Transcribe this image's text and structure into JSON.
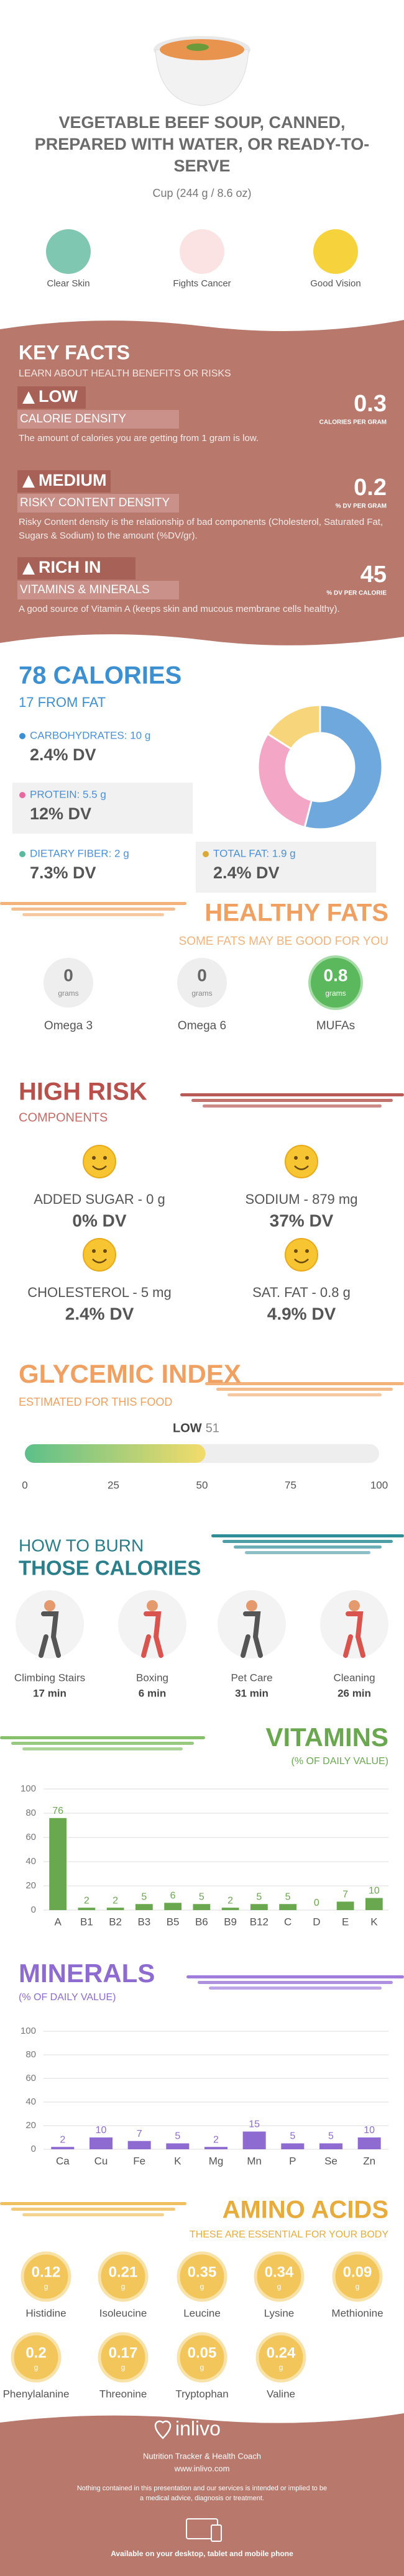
{
  "header": {
    "title": "VEGETABLE BEEF SOUP, CANNED, PREPARED WITH WATER, OR READY-TO-SERVE",
    "serving": "Cup (244 g / 8.6 oz)"
  },
  "benefits": [
    "Clear Skin",
    "Fights Cancer",
    "Good Vision"
  ],
  "key_facts": {
    "title": "KEY FACTS",
    "subtitle": "LEARN ABOUT HEALTH BENEFITS OR RISKS",
    "items": [
      {
        "level": "LOW",
        "label": "CALORIE DENSITY",
        "value": 0.3,
        "unit": "CALORIES PER GRAM",
        "desc": "The amount of calories you are getting from 1 gram is low."
      },
      {
        "level": "MEDIUM",
        "label": "RISKY CONTENT DENSITY",
        "value": 0.2,
        "unit": "% DV PER GRAM",
        "desc": "Risky Content density is the relationship of bad components (Cholesterol, Saturated Fat, Sugars & Sodium) to the amount (%DV/gr)."
      },
      {
        "level": "RICH IN",
        "label": "VITAMINS & MINERALS",
        "value": 45,
        "unit": "% DV PER CALORIE",
        "desc": "A good source of Vitamin A (keeps skin and mucous membrane cells healthy)."
      }
    ]
  },
  "calories": {
    "title": "78 CALORIES",
    "subtitle": "17 FROM FAT",
    "nutrients": [
      {
        "label": "CARBOHYDRATES: 10 g",
        "dv": "2.4% DV"
      },
      {
        "label": "PROTEIN: 5.5 g",
        "dv": "12% DV"
      },
      {
        "label": "DIETARY FIBER: 2 g",
        "dv": "7.3% DV"
      },
      {
        "label": "TOTAL FAT: 1.9 g",
        "dv": "2.4% DV"
      }
    ],
    "donut": {
      "type": "pie",
      "values": [
        54,
        30,
        16
      ],
      "colors": [
        "#6fa8dc",
        "#f4a6c6",
        "#f7d57a"
      ]
    }
  },
  "healthy_fats": {
    "title": "HEALTHY FATS",
    "subtitle": "SOME FATS MAY BE GOOD FOR YOU",
    "unit": "grams",
    "items": [
      {
        "name": "Omega 3",
        "value": 0
      },
      {
        "name": "Omega 6",
        "value": 0
      },
      {
        "name": "MUFAs",
        "value": 0.8
      }
    ]
  },
  "high_risk": {
    "title": "HIGH RISK",
    "subtitle": "COMPONENTS",
    "items": [
      {
        "label": "ADDED SUGAR - 0 g",
        "dv": "0% DV"
      },
      {
        "label": "SODIUM - 879 mg",
        "dv": "37% DV"
      },
      {
        "label": "CHOLESTEROL - 5 mg",
        "dv": "2.4% DV"
      },
      {
        "label": "SAT. FAT - 0.8 g",
        "dv": "4.9% DV"
      }
    ]
  },
  "glycemic": {
    "title": "GLYCEMIC INDEX",
    "subtitle": "ESTIMATED FOR THIS FOOD",
    "level": "LOW",
    "value": 51,
    "xlim": [
      0,
      100
    ],
    "xticks": [
      0,
      25,
      50,
      75,
      100
    ]
  },
  "burn": {
    "title": "HOW TO BURN",
    "subtitle": "THOSE CALORIES",
    "activities": [
      {
        "name": "Climbing Stairs",
        "time": "17 min"
      },
      {
        "name": "Boxing",
        "time": "6 min"
      },
      {
        "name": "Pet Care",
        "time": "31 min"
      },
      {
        "name": "Cleaning",
        "time": "26 min"
      }
    ]
  },
  "chart_data": [
    {
      "type": "bar",
      "title": "VITAMINS",
      "subtitle": "(% OF DAILY VALUE)",
      "categories": [
        "A",
        "B1",
        "B2",
        "B3",
        "B5",
        "B6",
        "B9",
        "B12",
        "C",
        "D",
        "E",
        "K"
      ],
      "values": [
        76,
        2,
        2,
        5,
        6,
        5,
        2,
        5,
        5,
        0,
        7,
        10
      ],
      "color": "#6aa84f",
      "ylim": [
        0,
        100
      ],
      "yticks": [
        0,
        20,
        40,
        60,
        80,
        100
      ],
      "grid": true
    },
    {
      "type": "bar",
      "title": "MINERALS",
      "subtitle": "(% OF DAILY VALUE)",
      "categories": [
        "Ca",
        "Cu",
        "Fe",
        "K",
        "Mg",
        "Mn",
        "P",
        "Se",
        "Zn"
      ],
      "values": [
        2,
        10,
        7,
        5,
        2,
        15,
        5,
        5,
        10
      ],
      "color": "#8e6bd1",
      "ylim": [
        0,
        100
      ],
      "yticks": [
        0,
        20,
        40,
        60,
        80,
        100
      ],
      "grid": true
    }
  ],
  "amino_acids": {
    "title": "AMINO ACIDS",
    "subtitle": "THESE ARE ESSENTIAL FOR YOUR BODY",
    "unit": "g",
    "items": [
      {
        "name": "Histidine",
        "value": 0.12
      },
      {
        "name": "Isoleucine",
        "value": 0.21
      },
      {
        "name": "Leucine",
        "value": 0.35
      },
      {
        "name": "Lysine",
        "value": 0.34
      },
      {
        "name": "Methionine",
        "value": 0.09
      },
      {
        "name": "Phenylalanine",
        "value": 0.2
      },
      {
        "name": "Threonine",
        "value": 0.17
      },
      {
        "name": "Tryptophan",
        "value": 0.05
      },
      {
        "name": "Valine",
        "value": 0.24
      }
    ]
  },
  "footer": {
    "brand": "inlivo",
    "tagline": "Nutrition Tracker & Health Coach",
    "url": "www.inlivo.com",
    "disclaimer": "Nothing contained in this presentation and our services is intended or implied to be a medical advice, diagnosis or treatment.",
    "available": "Available on your desktop, tablet and mobile phone"
  }
}
